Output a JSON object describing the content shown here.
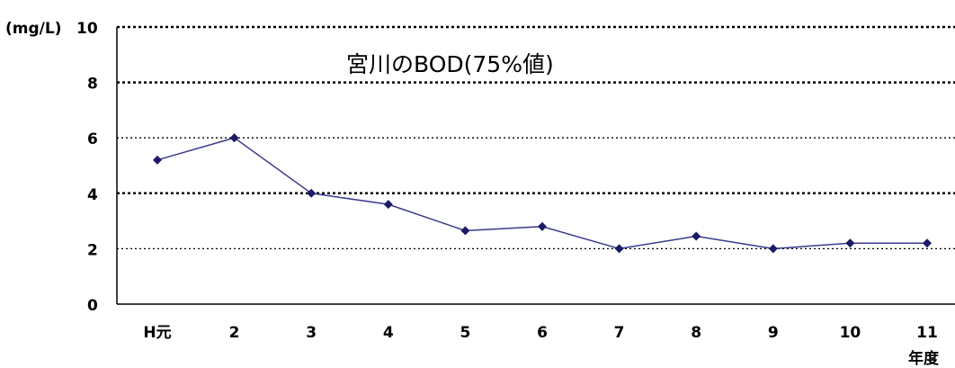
{
  "chart_data": {
    "type": "line",
    "title": "宮川のBOD(75%値)",
    "ylabel": "(mg/L)",
    "xlabel": "年度",
    "categories": [
      "H元",
      "2",
      "3",
      "4",
      "5",
      "6",
      "7",
      "8",
      "9",
      "10",
      "11"
    ],
    "series": [
      {
        "values": [
          5.2,
          6.0,
          4.0,
          3.6,
          2.65,
          2.8,
          2.0,
          2.45,
          2.0,
          2.2,
          2.2
        ]
      }
    ],
    "ylim": [
      0,
      10
    ],
    "yticks": [
      0,
      2,
      4,
      6,
      8,
      10
    ],
    "grid": true,
    "legend": "none",
    "colors": {
      "line": "#3a3a8c",
      "marker": "#1a1a66",
      "grid": "#000000",
      "axis": "#000000"
    }
  }
}
